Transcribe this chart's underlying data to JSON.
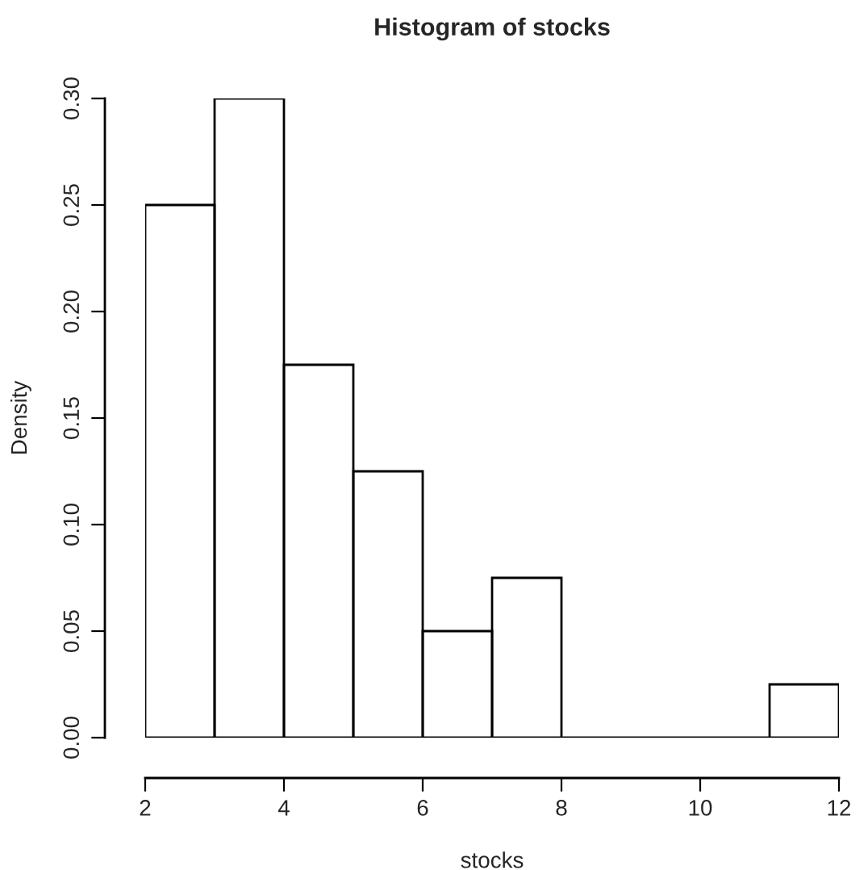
{
  "chart_data": {
    "type": "histogram",
    "title": "Histogram of stocks",
    "xlabel": "stocks",
    "ylabel": "Density",
    "bins": [
      2,
      3,
      4,
      5,
      6,
      7,
      8,
      9,
      10,
      11,
      12
    ],
    "values": [
      0.25,
      0.3,
      0.175,
      0.125,
      0.05,
      0.075,
      0,
      0,
      0,
      0.025
    ],
    "xlim": [
      2,
      12
    ],
    "ylim": [
      0,
      0.3
    ],
    "xticks": [
      2,
      4,
      6,
      8,
      10,
      12
    ],
    "yticks": [
      {
        "value": 0,
        "label": "0.00"
      },
      {
        "value": 0.05,
        "label": "0.05"
      },
      {
        "value": 0.1,
        "label": "0.10"
      },
      {
        "value": 0.15,
        "label": "0.15"
      },
      {
        "value": 0.2,
        "label": "0.20"
      },
      {
        "value": 0.25,
        "label": "0.25"
      },
      {
        "value": 0.3,
        "label": "0.30"
      }
    ]
  }
}
